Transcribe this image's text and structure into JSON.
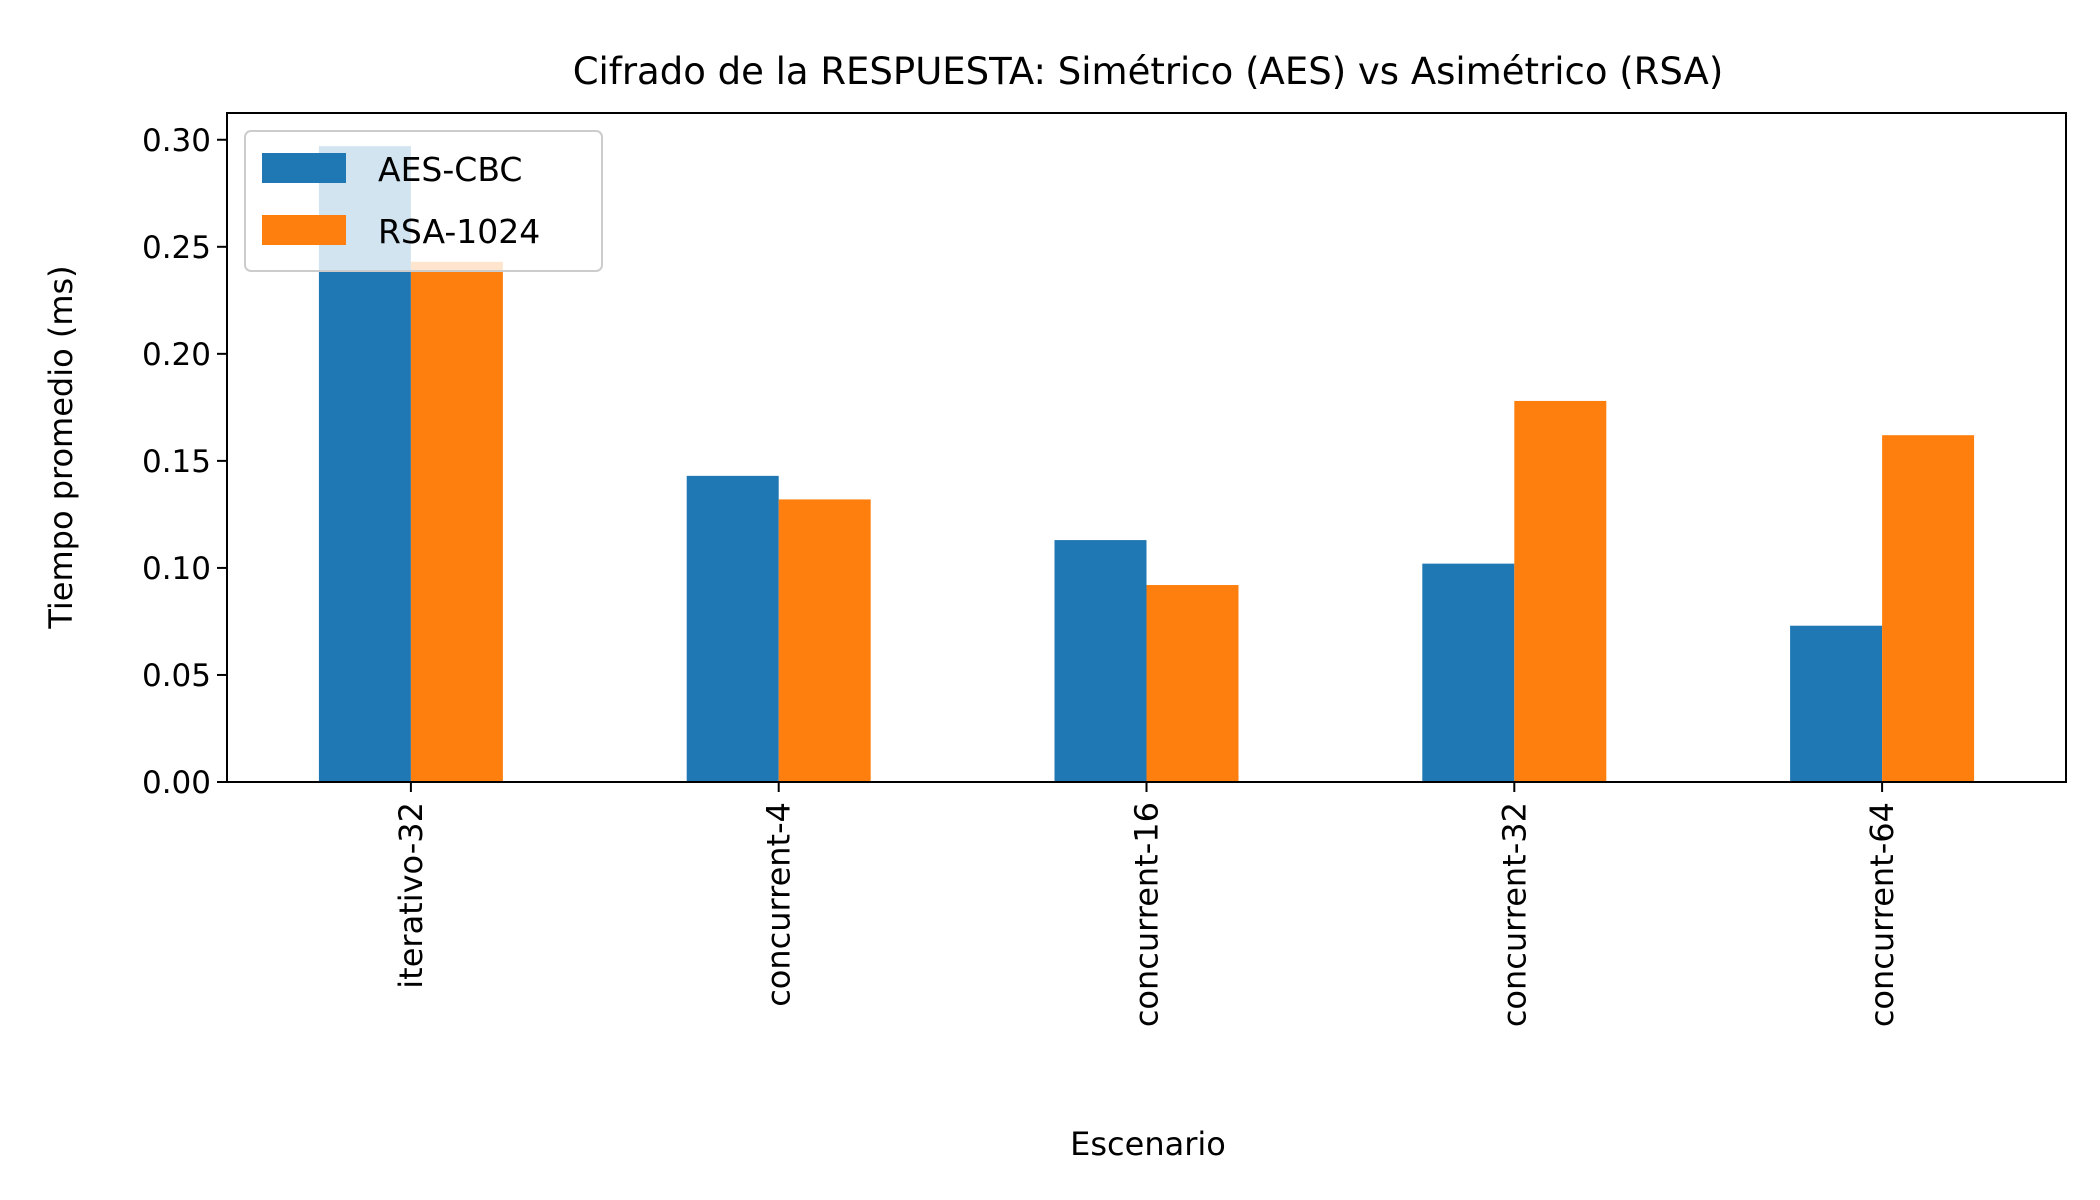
{
  "chart_data": {
    "type": "bar",
    "title": "Cifrado de la RESPUESTA: Simétrico (AES) vs Asimétrico (RSA)",
    "xlabel": "Escenario",
    "ylabel": "Tiempo promedio (ms)",
    "categories": [
      "iterativo-32",
      "concurrent-4",
      "concurrent-16",
      "concurrent-32",
      "concurrent-64"
    ],
    "series": [
      {
        "name": "AES-CBC",
        "color": "#1f77b4",
        "values": [
          0.297,
          0.143,
          0.113,
          0.102,
          0.073
        ]
      },
      {
        "name": "RSA-1024",
        "color": "#ff7f0e",
        "values": [
          0.243,
          0.132,
          0.092,
          0.178,
          0.162
        ]
      }
    ],
    "ylim": [
      0,
      0.3125
    ],
    "yticks": [
      0.0,
      0.05,
      0.1,
      0.15,
      0.2,
      0.25,
      0.3
    ],
    "ytick_labels": [
      "0.00",
      "0.05",
      "0.10",
      "0.15",
      "0.20",
      "0.25",
      "0.30"
    ],
    "legend_position": "upper-left",
    "grid": false
  }
}
